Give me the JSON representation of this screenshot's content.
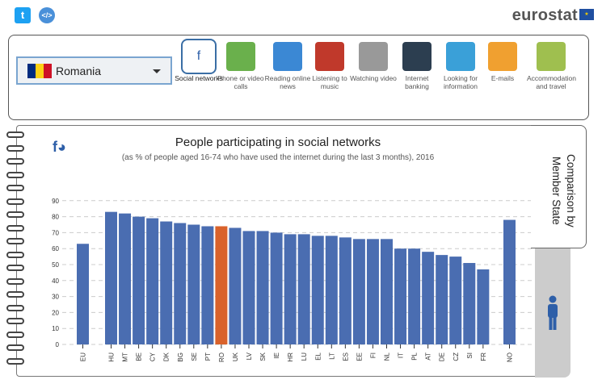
{
  "header": {
    "twitter_icon": "twitter-icon",
    "embed_icon": "embed-icon",
    "logo": "eurostat"
  },
  "selector": {
    "country": "Romania"
  },
  "categories": [
    {
      "label": "Social networks",
      "icon": "social-networks-icon",
      "color": "#2e5fa8",
      "active": true
    },
    {
      "label": "Phone or video calls",
      "icon": "video-call-icon",
      "color": "#6ab04c"
    },
    {
      "label": "Reading online news",
      "icon": "news-icon",
      "color": "#3b88d4"
    },
    {
      "label": "Listening to music",
      "icon": "music-icon",
      "color": "#c0392b"
    },
    {
      "label": "Watching video",
      "icon": "video-icon",
      "color": "#999999"
    },
    {
      "label": "Internet banking",
      "icon": "banking-icon",
      "color": "#2c3e50"
    },
    {
      "label": "Looking for information",
      "icon": "search-icon",
      "color": "#3aa0d8"
    },
    {
      "label": "E-mails",
      "icon": "email-icon",
      "color": "#f0a030"
    },
    {
      "label": "Accommodation and travel",
      "icon": "travel-icon",
      "color": "#9fbf4f"
    }
  ],
  "tabs": {
    "comparison": "Comparison by Member State"
  },
  "chart_data": {
    "type": "bar",
    "title": "People participating in social networks",
    "subtitle": "(as % of people aged 16-74 who have used the internet during the last 3 months), 2016",
    "categories": [
      "EU",
      "HU",
      "MT",
      "BE",
      "CY",
      "DK",
      "BG",
      "SE",
      "PT",
      "RO",
      "UK",
      "LV",
      "SK",
      "IE",
      "HR",
      "LU",
      "EL",
      "LT",
      "ES",
      "EE",
      "FI",
      "NL",
      "IT",
      "PL",
      "AT",
      "DE",
      "CZ",
      "SI",
      "FR",
      "NO"
    ],
    "values": [
      63,
      83,
      82,
      80,
      79,
      77,
      76,
      75,
      74,
      74,
      73,
      71,
      71,
      70,
      69,
      69,
      68,
      68,
      67,
      66,
      66,
      66,
      60,
      60,
      58,
      56,
      55,
      51,
      47,
      78
    ],
    "highlight": "RO",
    "colors": {
      "bar": "#4a6db1",
      "highlight": "#d9622b"
    },
    "ylim": [
      0,
      90
    ],
    "yticks": [
      0,
      10,
      20,
      30,
      40,
      50,
      60,
      70,
      80,
      90
    ],
    "grid": true
  }
}
